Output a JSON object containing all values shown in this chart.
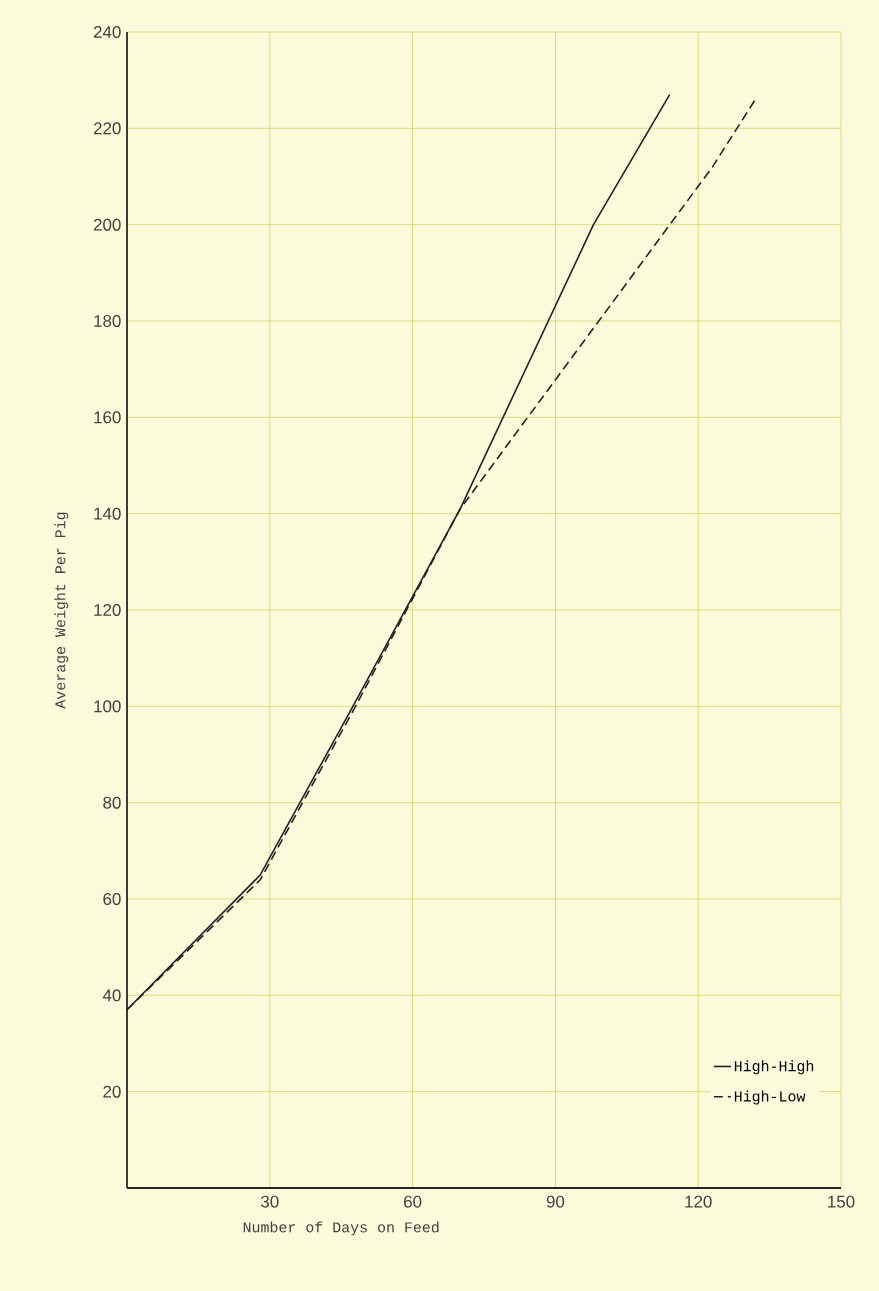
{
  "chart_data": {
    "type": "line",
    "xlabel": "Number of Days on Feed",
    "ylabel": "Average Weight Per Pig",
    "xlim": [
      0,
      150
    ],
    "xticks": [
      30,
      60,
      90,
      120,
      150
    ],
    "ylim": [
      0,
      240
    ],
    "yticks": [
      20,
      40,
      60,
      80,
      100,
      120,
      140,
      160,
      180,
      200,
      220,
      240
    ],
    "grid": true,
    "legend": "bottom right",
    "marker": "none",
    "series": [
      {
        "name": "High-High",
        "color": "#222222",
        "line_style": "solid",
        "x": [
          0,
          28,
          48,
          70,
          98,
          114
        ],
        "values": [
          37,
          65,
          101,
          141,
          200,
          227
        ]
      },
      {
        "name": "High-Low",
        "color": "#222222",
        "line_style": "dashed",
        "x": [
          0,
          28,
          48,
          70,
          123,
          132
        ],
        "values": [
          37,
          64,
          100,
          141,
          212,
          226
        ]
      }
    ]
  }
}
